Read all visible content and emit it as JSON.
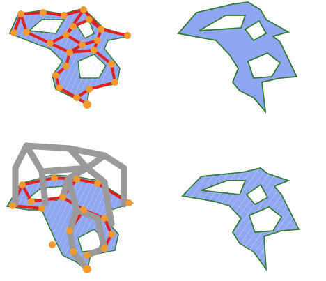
{
  "figure": {
    "panels": [
      {
        "id": "a",
        "content": "graph-on-surface"
      },
      {
        "id": "b",
        "content": "flat-surface"
      },
      {
        "id": "c",
        "content": "3d-structure"
      },
      {
        "id": "d",
        "content": "meshed-surface"
      }
    ],
    "colors": {
      "surface_fill": "#8fa6f2",
      "surface_edge": "#2f7a2f",
      "graph_edge": "#e01f1f",
      "node": "#f29a2e",
      "mesh_line": "#d9e0f5",
      "structure_gray": "#9a9a9a",
      "background": "#ffffff"
    }
  }
}
